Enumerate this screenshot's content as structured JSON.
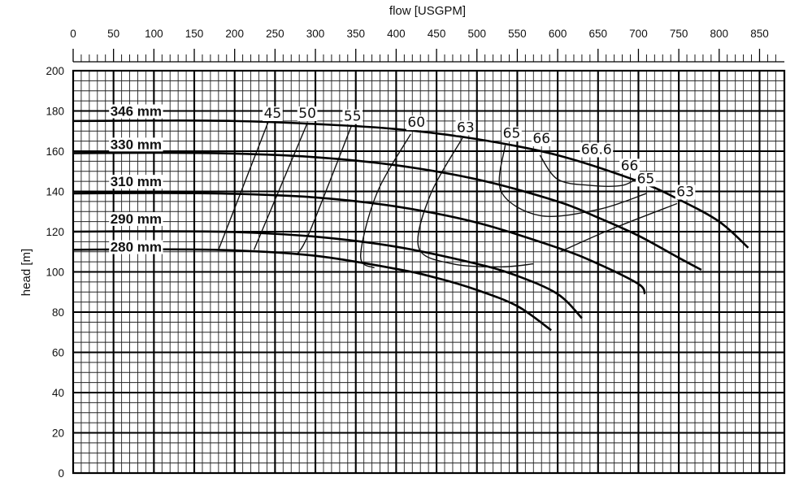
{
  "chart_data": {
    "type": "line",
    "xlabel": "flow [USGPM]",
    "ylabel": "head [m]",
    "xlim": [
      0,
      880
    ],
    "ylim": [
      0,
      200
    ],
    "x_ticks": [
      0,
      50,
      100,
      150,
      200,
      250,
      300,
      350,
      400,
      450,
      500,
      550,
      600,
      650,
      700,
      750,
      800,
      850
    ],
    "y_ticks": [
      0,
      20,
      40,
      60,
      80,
      100,
      120,
      140,
      160,
      180,
      200
    ],
    "grid": true,
    "impeller_curves": [
      {
        "name": "346 mm",
        "points": [
          [
            0,
            175
          ],
          [
            100,
            175.2
          ],
          [
            200,
            175
          ],
          [
            300,
            173.5
          ],
          [
            400,
            171
          ],
          [
            500,
            166
          ],
          [
            600,
            158
          ],
          [
            700,
            145
          ],
          [
            750,
            136
          ],
          [
            800,
            125
          ],
          [
            836,
            112
          ]
        ]
      },
      {
        "name": "330 mm",
        "points": [
          [
            0,
            159
          ],
          [
            100,
            159.2
          ],
          [
            200,
            158.8
          ],
          [
            300,
            157
          ],
          [
            400,
            153
          ],
          [
            500,
            146
          ],
          [
            600,
            135
          ],
          [
            650,
            127
          ],
          [
            700,
            118
          ],
          [
            750,
            107
          ],
          [
            778,
            101
          ]
        ]
      },
      {
        "name": "310 mm",
        "points": [
          [
            0,
            139
          ],
          [
            100,
            139.2
          ],
          [
            200,
            138.8
          ],
          [
            300,
            137
          ],
          [
            400,
            132.5
          ],
          [
            500,
            124.5
          ],
          [
            600,
            112
          ],
          [
            650,
            104
          ],
          [
            700,
            94
          ],
          [
            708,
            89
          ]
        ]
      },
      {
        "name": "290 mm",
        "points": [
          [
            0,
            120
          ],
          [
            100,
            120.2
          ],
          [
            200,
            119.8
          ],
          [
            300,
            117.5
          ],
          [
            400,
            112.5
          ],
          [
            500,
            104
          ],
          [
            550,
            98
          ],
          [
            600,
            89
          ],
          [
            630,
            77
          ]
        ]
      },
      {
        "name": "280 mm",
        "points": [
          [
            0,
            111
          ],
          [
            100,
            111.2
          ],
          [
            200,
            110.7
          ],
          [
            300,
            108
          ],
          [
            400,
            101.5
          ],
          [
            450,
            97
          ],
          [
            500,
            91
          ],
          [
            550,
            83
          ],
          [
            592,
            71
          ]
        ]
      }
    ],
    "efficiency_curves": [
      {
        "name": "45",
        "points": [
          [
            242,
            175
          ],
          [
            180,
            111
          ]
        ]
      },
      {
        "name": "50",
        "points": [
          [
            290,
            174
          ],
          [
            224,
            111
          ]
        ]
      },
      {
        "name": "55",
        "points": [
          [
            345,
            173
          ],
          [
            294,
            121
          ],
          [
            278,
            109
          ]
        ]
      },
      {
        "name": "60",
        "points": [
          [
            418,
            168.5
          ],
          [
            376,
            139
          ],
          [
            356,
            108
          ],
          [
            373,
            102
          ]
        ]
      },
      {
        "name": "63",
        "points": [
          [
            482,
            166.5
          ],
          [
            442,
            138
          ],
          [
            428,
            112
          ],
          [
            470,
            104
          ],
          [
            530,
            102.5
          ],
          [
            570,
            104
          ]
        ]
      },
      {
        "name": "65",
        "points": [
          [
            535,
            163
          ],
          [
            530,
            140
          ],
          [
            578,
            128
          ],
          [
            650,
            131
          ],
          [
            710,
            139
          ]
        ]
      },
      {
        "name": "66",
        "points": [
          [
            578,
            158
          ],
          [
            600,
            146
          ],
          [
            640,
            143
          ],
          [
            680,
            143
          ],
          [
            700,
            147
          ]
        ]
      },
      {
        "name": "63",
        "points": [
          [
            603,
            110
          ],
          [
            665,
            121
          ],
          [
            748,
            134
          ]
        ]
      }
    ],
    "labels": {
      "impeller": [
        {
          "text": "346 mm",
          "x": 46,
          "y": 180
        },
        {
          "text": "330 mm",
          "x": 46,
          "y": 163.5
        },
        {
          "text": "310 mm",
          "x": 46,
          "y": 145
        },
        {
          "text": "290 mm",
          "x": 46,
          "y": 126.5
        },
        {
          "text": "280 mm",
          "x": 46,
          "y": 112.5
        }
      ],
      "efficiency": [
        {
          "text": "45",
          "x": 247,
          "y": 179
        },
        {
          "text": "50",
          "x": 290,
          "y": 179
        },
        {
          "text": "55",
          "x": 346,
          "y": 177.5
        },
        {
          "text": "60",
          "x": 425,
          "y": 174.5
        },
        {
          "text": "63",
          "x": 486,
          "y": 172
        },
        {
          "text": "65",
          "x": 543,
          "y": 169
        },
        {
          "text": "66",
          "x": 580,
          "y": 166.5
        },
        {
          "text": "66.6",
          "x": 648,
          "y": 161
        },
        {
          "text": "66",
          "x": 689,
          "y": 153
        },
        {
          "text": "65",
          "x": 709,
          "y": 146.5
        },
        {
          "text": "63",
          "x": 758,
          "y": 140
        }
      ]
    }
  }
}
